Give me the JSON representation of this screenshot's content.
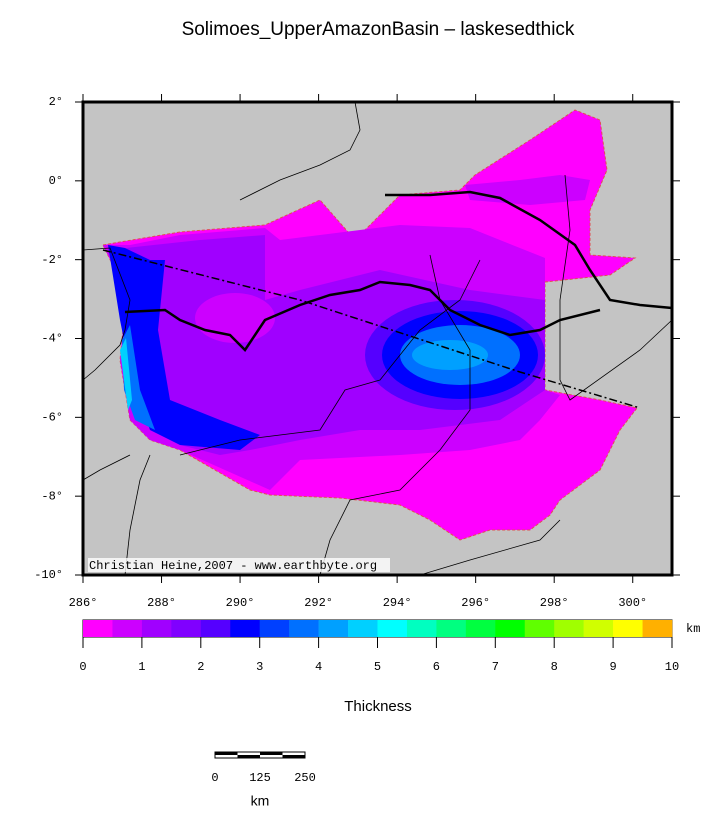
{
  "title": "Solimoes_UpperAmazonBasin – laskesedthick",
  "map": {
    "credit": "Christian Heine,2007 - www.earthbyte.org",
    "lon_extent": [
      286,
      301
    ],
    "lat_extent": [
      2,
      -10
    ],
    "lon_ticks": [
      {
        "value": 286,
        "label": "286°"
      },
      {
        "value": 288,
        "label": "288°"
      },
      {
        "value": 290,
        "label": "290°"
      },
      {
        "value": 292,
        "label": "292°"
      },
      {
        "value": 294,
        "label": "294°"
      },
      {
        "value": 296,
        "label": "296°"
      },
      {
        "value": 298,
        "label": "298°"
      },
      {
        "value": 300,
        "label": "300°"
      }
    ],
    "lat_ticks": [
      {
        "value": 2,
        "label": "2°"
      },
      {
        "value": 0,
        "label": "0°"
      },
      {
        "value": -2,
        "label": "-2°"
      },
      {
        "value": -4,
        "label": "-4°"
      },
      {
        "value": -6,
        "label": "-6°"
      },
      {
        "value": -8,
        "label": "-8°"
      },
      {
        "value": -10,
        "label": "-10°"
      }
    ]
  },
  "colorbar": {
    "label": "Thickness",
    "unit": "km",
    "range": [
      0,
      10
    ],
    "ticks": [
      0,
      1,
      2,
      3,
      4,
      5,
      6,
      7,
      8,
      9,
      10
    ],
    "colors": [
      "#ff00ff",
      "#cc00ff",
      "#a000ff",
      "#8000ff",
      "#5500ff",
      "#0000ff",
      "#0040ff",
      "#0070ff",
      "#00a0ff",
      "#00d0ff",
      "#00ffff",
      "#00ffc0",
      "#00ff80",
      "#00ff40",
      "#00ff00",
      "#60ff00",
      "#a0ff00",
      "#d0ff00",
      "#ffff00",
      "#ffb000"
    ]
  },
  "scalebar": {
    "ticks": [
      0,
      125,
      250
    ],
    "unit": "km"
  }
}
